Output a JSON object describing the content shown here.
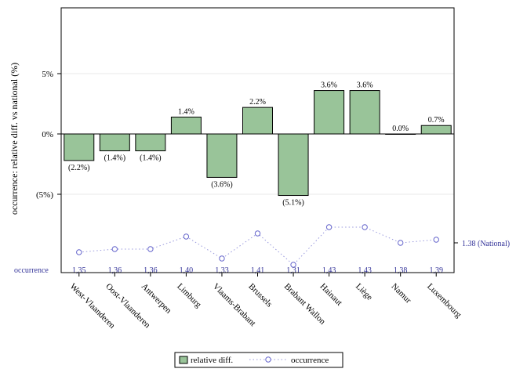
{
  "chart_data": {
    "type": "bar",
    "ylabel": "occurrence: relative diff. vs national (%)",
    "categories": [
      "West-Vlaanderen",
      "Oost-Vlaanderen",
      "Antwerpen",
      "Limburg",
      "Vlaams-Brabant",
      "Brussels",
      "Brabant Wallon",
      "Hainaut",
      "Liège",
      "Namur",
      "Luxembourg"
    ],
    "yticks": [
      {
        "value": 5,
        "label": "5%"
      },
      {
        "value": 0,
        "label": "0%"
      },
      {
        "value": -5,
        "label": "(5%)"
      }
    ],
    "series": [
      {
        "name": "relative diff.",
        "values": [
          -2.2,
          -1.4,
          -1.4,
          1.4,
          -3.6,
          2.2,
          -5.1,
          3.6,
          3.6,
          0.0,
          0.7
        ],
        "labels": [
          "(2.2%)",
          "(1.4%)",
          "(1.4%)",
          "1.4%",
          "(3.6%)",
          "2.2%",
          "(5.1%)",
          "3.6%",
          "3.6%",
          "0.0%",
          "0.7%"
        ],
        "color": "#99c499"
      },
      {
        "name": "occurrence",
        "values": [
          1.35,
          1.36,
          1.36,
          1.4,
          1.33,
          1.41,
          1.31,
          1.43,
          1.43,
          1.38,
          1.39
        ],
        "labels": [
          "1,35",
          "1,36",
          "1,36",
          "1,40",
          "1,33",
          "1,41",
          "1,31",
          "1,43",
          "1,43",
          "1,38",
          "1,39"
        ],
        "color": "#6666cc"
      }
    ],
    "occurrence_row_label": "occurrence",
    "national_label": "1.38 (National)",
    "national_value": 1.38,
    "legend_position": "bottom",
    "grid": true
  }
}
